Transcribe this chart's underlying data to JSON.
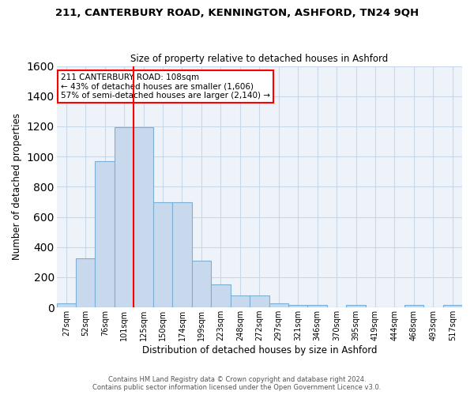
{
  "title": "211, CANTERBURY ROAD, KENNINGTON, ASHFORD, TN24 9QH",
  "subtitle": "Size of property relative to detached houses in Ashford",
  "xlabel": "Distribution of detached houses by size in Ashford",
  "ylabel": "Number of detached properties",
  "bin_labels": [
    "27sqm",
    "52sqm",
    "76sqm",
    "101sqm",
    "125sqm",
    "150sqm",
    "174sqm",
    "199sqm",
    "223sqm",
    "248sqm",
    "272sqm",
    "297sqm",
    "321sqm",
    "346sqm",
    "370sqm",
    "395sqm",
    "419sqm",
    "444sqm",
    "468sqm",
    "493sqm",
    "517sqm"
  ],
  "bar_values": [
    25,
    325,
    970,
    1195,
    1195,
    695,
    695,
    310,
    155,
    80,
    80,
    25,
    15,
    15,
    0,
    15,
    0,
    0,
    15,
    0,
    15
  ],
  "bar_color": "#c9d9ed",
  "bar_edge_color": "#7bafd4",
  "grid_color": "#c8d8e8",
  "background_color": "#eef3f9",
  "vline_x": 3.5,
  "vline_color": "red",
  "ylim": [
    0,
    1600
  ],
  "yticks": [
    0,
    200,
    400,
    600,
    800,
    1000,
    1200,
    1400,
    1600
  ],
  "annotation_text": "211 CANTERBURY ROAD: 108sqm\n← 43% of detached houses are smaller (1,606)\n57% of semi-detached houses are larger (2,140) →",
  "annotation_box_color": "white",
  "annotation_box_edge_color": "red",
  "footer_line1": "Contains HM Land Registry data © Crown copyright and database right 2024.",
  "footer_line2": "Contains public sector information licensed under the Open Government Licence v3.0."
}
